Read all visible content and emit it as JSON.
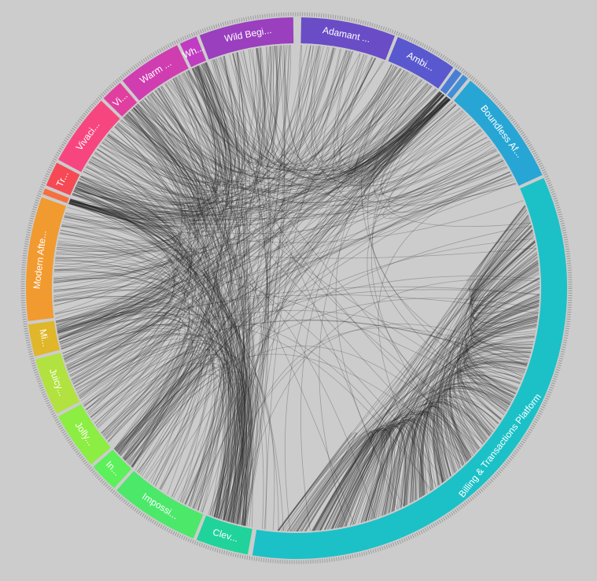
{
  "segments": [
    {
      "label": "Wild Begi..."
    },
    {
      "label": "Adamant ..."
    },
    {
      "label": "Ambi..."
    },
    {
      "label": "Boundless Af..."
    },
    {
      "label": "Billing & Transactions Platform"
    },
    {
      "label": "Clev..."
    },
    {
      "label": "Impossi..."
    },
    {
      "label": "In..."
    },
    {
      "label": "Jolly..."
    },
    {
      "label": "Juicy..."
    },
    {
      "label": "Mi..."
    },
    {
      "label": "Modern Afte..."
    },
    {
      "label": "Tr..."
    },
    {
      "label": "Vivaci..."
    },
    {
      "label": "Vi..."
    },
    {
      "label": "Warm ..."
    },
    {
      "label": "Wh..."
    }
  ]
}
